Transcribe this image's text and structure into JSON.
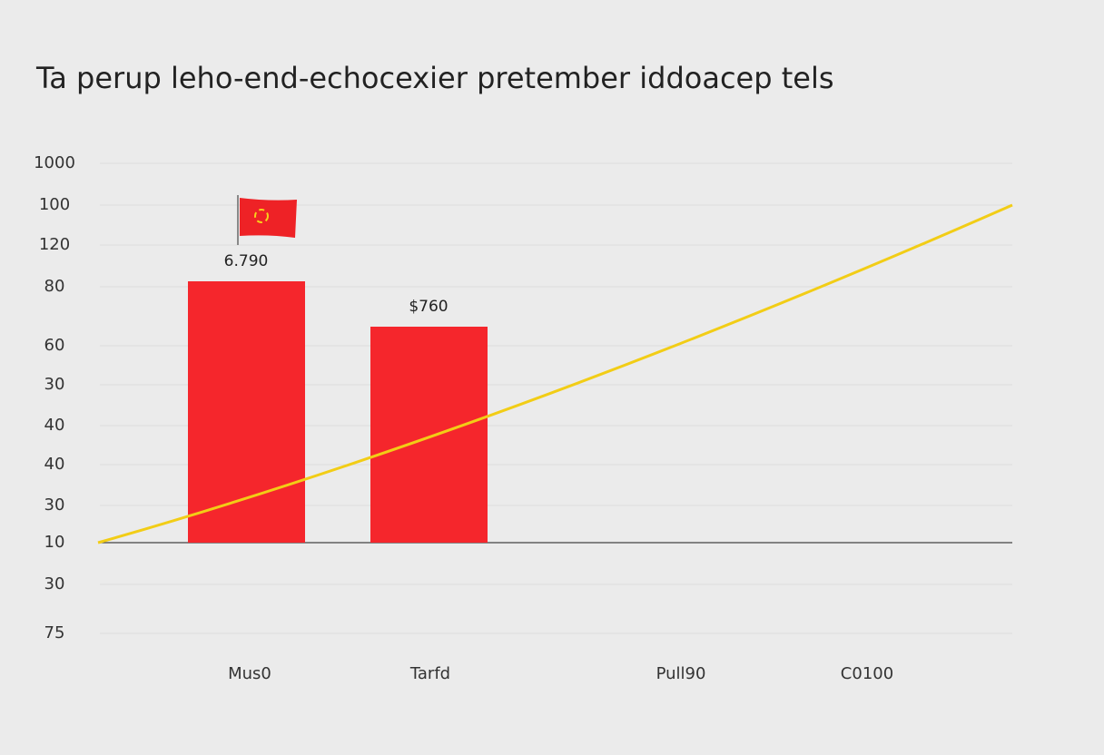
{
  "title": "Ta perup leho-end-echocexier pretember iddoacep tels",
  "y_axis_labels": [
    "1000",
    "100",
    "120",
    "80",
    "60",
    "30",
    "40",
    "40",
    "30",
    "10",
    "30",
    "75"
  ],
  "x_axis_labels": [
    "Mus0",
    "Tarfd",
    "Pull90",
    "C0100"
  ],
  "bar_labels": [
    "6.790",
    "$760"
  ]
}
